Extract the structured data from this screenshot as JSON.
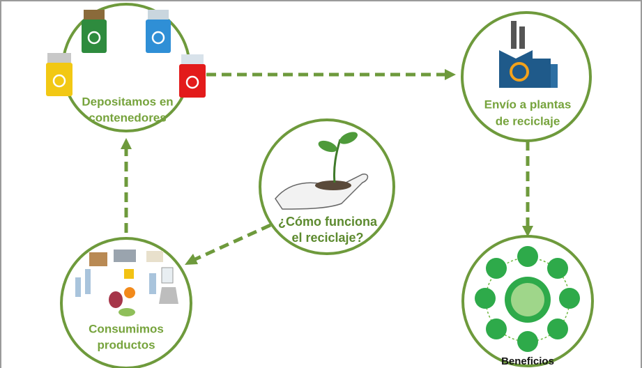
{
  "nodes": [
    {
      "label_lines": [
        "Depositamos en",
        "contenedores"
      ]
    },
    {
      "label_lines": [
        "Envío a plantas",
        "de reciclaje"
      ]
    },
    {
      "label_lines": [
        "¿Cómo funciona",
        "el reciclaje?"
      ]
    },
    {
      "label_lines": [
        "Consumimos",
        "productos"
      ]
    },
    {
      "label_lines": [
        "Beneficios"
      ]
    }
  ]
}
